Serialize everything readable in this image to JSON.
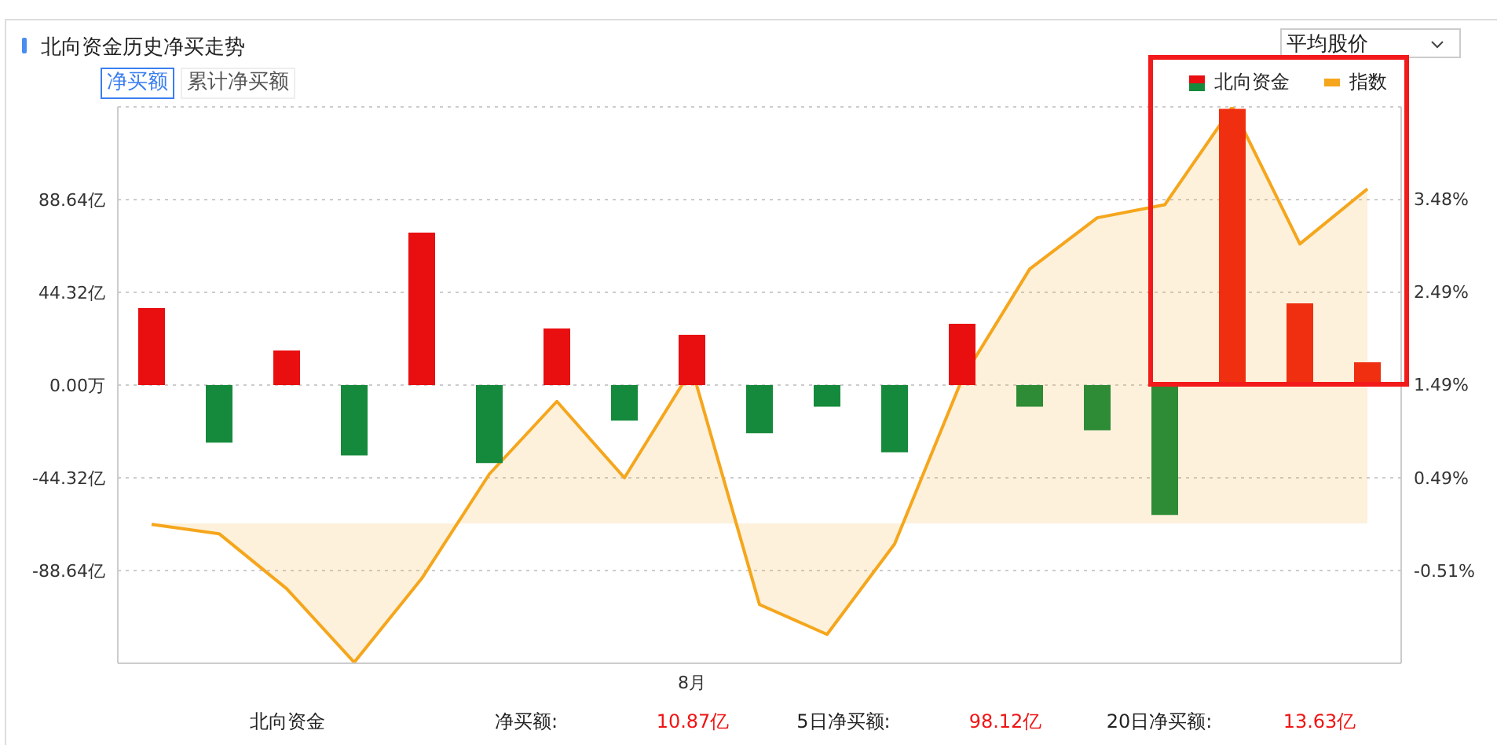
{
  "chart_data": {
    "type": "bar",
    "title": "北向资金历史净买走势",
    "annotations": [
      "净买额",
      "累计净买额",
      "平均股价",
      "北向资金",
      "净买额:",
      "10.87亿",
      "5日净买额:",
      "98.12亿",
      "20日净买额:",
      "13.63亿"
    ],
    "categories": [
      null,
      null,
      null,
      null,
      null,
      null,
      null,
      null,
      "8月",
      null,
      null,
      null,
      null,
      null,
      null,
      null,
      null,
      null,
      null
    ],
    "series": [
      {
        "name": "北向资金",
        "colors": [
          "#e90e10",
          "#168a3c",
          "#e90e10",
          "#168a3c",
          "#e90e10",
          "#168a3c",
          "#e90e10",
          "#168a3c",
          "#e90e10",
          "#168a3c",
          "#168a3c",
          "#168a3c",
          "#e90e10",
          "#2e8b36",
          "#2e8b36",
          "#2e8b36",
          "#ef2f10",
          "#ef2f10",
          "#ef2f10"
        ],
        "values": [
          36.8,
          -27.5,
          16.5,
          -33.6,
          72.9,
          -37.3,
          27.0,
          -17.0,
          24.0,
          -23.0,
          -10.3,
          -32.1,
          29.3,
          -10.3,
          -21.6,
          -62.1,
          132,
          39.1,
          10.87
        ]
      },
      {
        "name": "指数",
        "type": "area",
        "axis": "y2",
        "color": "#f5a61c",
        "values": [
          -0.01,
          -0.11,
          -0.7,
          -1.49,
          -0.59,
          0.53,
          1.31,
          0.49,
          1.66,
          -0.87,
          -1.19,
          -0.22,
          1.55,
          2.73,
          3.28,
          3.42,
          4.47,
          3.0,
          3.59
        ]
      }
    ],
    "ylim": [
      -132.96,
      132.96
    ],
    "yticks": [
      {
        "value": 88.64,
        "label": "88.64亿"
      },
      {
        "value": 44.32,
        "label": "44.32亿"
      },
      {
        "value": 0,
        "label": "0.00万"
      },
      {
        "value": -44.32,
        "label": "-44.32亿"
      },
      {
        "value": -88.64,
        "label": "-88.64亿"
      }
    ],
    "y2lim": [
      -1.5,
      4.47
    ],
    "y2ticks": [
      {
        "value": 3.48,
        "label": "3.48%"
      },
      {
        "value": 2.49,
        "label": "2.49%"
      },
      {
        "value": 1.49,
        "label": "1.49%"
      },
      {
        "value": 0.49,
        "label": "0.49%"
      },
      {
        "value": -0.51,
        "label": "-0.51%"
      }
    ],
    "grid": "y",
    "legend": "top right"
  }
}
